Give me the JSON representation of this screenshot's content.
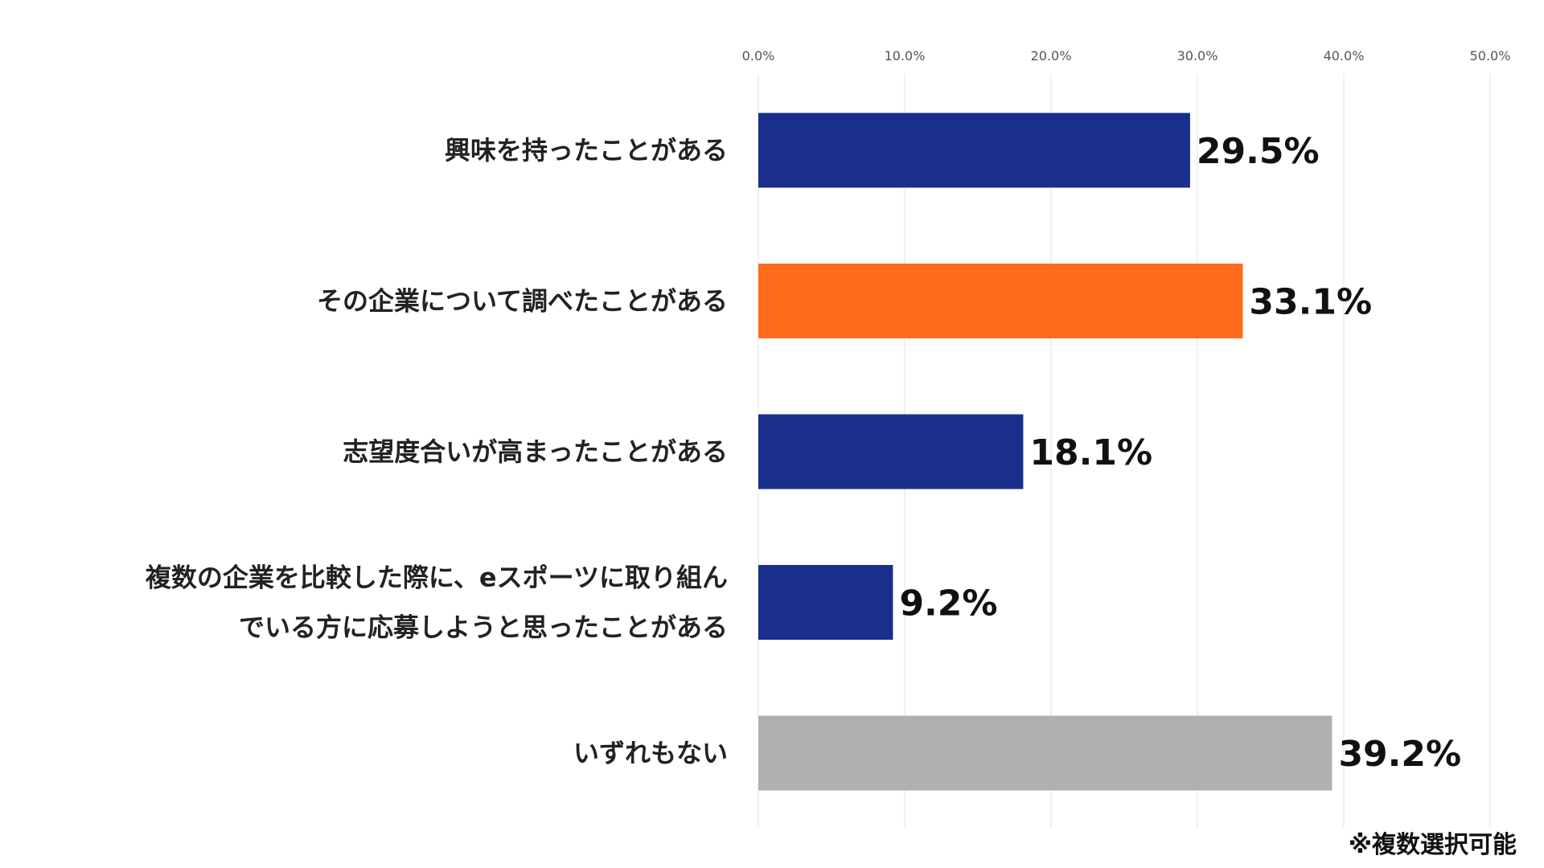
{
  "chart_data": {
    "type": "bar",
    "orientation": "horizontal",
    "categories": [
      [
        "興味を持ったことがある"
      ],
      [
        "その企業について調べたことがある"
      ],
      [
        "志望度合いが高まったことがある"
      ],
      [
        "複数の企業を比較した際に、eスポーツに取り組ん",
        "でいる方に応募しようと思ったことがある"
      ],
      [
        "いずれもない"
      ]
    ],
    "values": [
      29.5,
      33.1,
      18.1,
      9.2,
      39.2
    ],
    "value_labels": [
      "29.5%",
      "33.1%",
      "18.1%",
      "9.2%",
      "39.2%"
    ],
    "bar_colors": [
      "#1a2f8c",
      "#ff6b1a",
      "#1a2f8c",
      "#1a2f8c",
      "#b0b0b0"
    ],
    "x_ticks": [
      0,
      10,
      20,
      30,
      40,
      50
    ],
    "x_tick_labels": [
      "0.0%",
      "10.0%",
      "20.0%",
      "30.0%",
      "40.0%",
      "50.0%"
    ],
    "xlim": [
      0,
      50
    ],
    "xaxis_position": "top",
    "grid": true,
    "gridline_color": "#e3e3e3",
    "title": "",
    "xlabel": "",
    "ylabel": ""
  },
  "note": "※複数選択可能"
}
